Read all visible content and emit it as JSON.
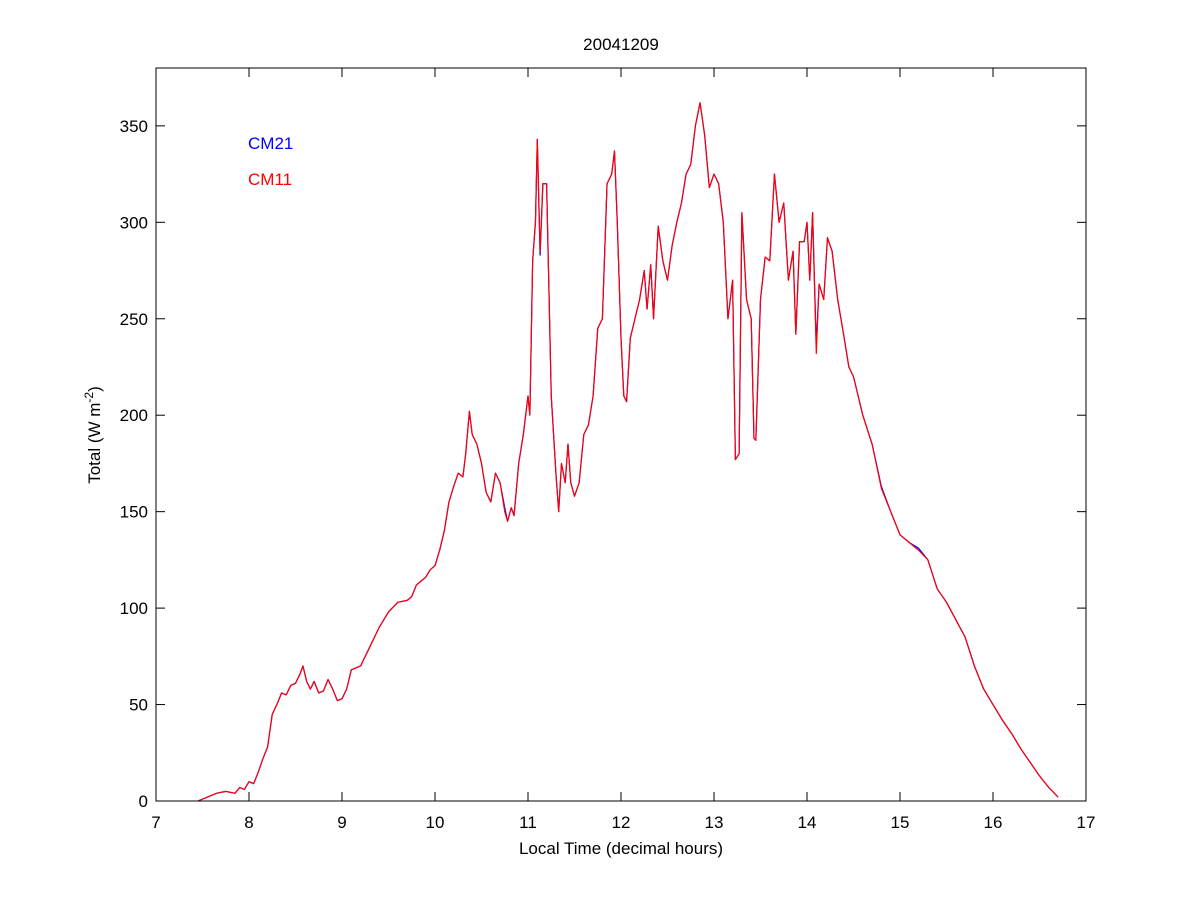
{
  "chart_data": {
    "type": "line",
    "title": "20041209",
    "x_label": "Local Time (decimal hours)",
    "y_label": [
      "Total (W m",
      "-2",
      ")"
    ],
    "xlim": [
      7,
      17
    ],
    "xticks": [
      7,
      8,
      9,
      10,
      11,
      12,
      13,
      14,
      15,
      16,
      17
    ],
    "ylim": [
      0,
      380
    ],
    "yticks": [
      0,
      50,
      100,
      150,
      200,
      250,
      300,
      350
    ],
    "legend": "upper left",
    "x": [
      7.45,
      7.55,
      7.65,
      7.75,
      7.85,
      7.9,
      7.95,
      8.0,
      8.05,
      8.1,
      8.15,
      8.2,
      8.25,
      8.3,
      8.35,
      8.4,
      8.45,
      8.5,
      8.55,
      8.58,
      8.62,
      8.66,
      8.7,
      8.75,
      8.8,
      8.85,
      8.9,
      8.95,
      9.0,
      9.05,
      9.1,
      9.2,
      9.3,
      9.4,
      9.5,
      9.6,
      9.7,
      9.75,
      9.8,
      9.9,
      9.95,
      10.0,
      10.05,
      10.1,
      10.15,
      10.2,
      10.25,
      10.3,
      10.33,
      10.37,
      10.4,
      10.45,
      10.5,
      10.55,
      10.6,
      10.65,
      10.7,
      10.75,
      10.78,
      10.82,
      10.85,
      10.9,
      10.95,
      11.0,
      11.02,
      11.05,
      11.08,
      11.1,
      11.13,
      11.16,
      11.2,
      11.25,
      11.3,
      11.33,
      11.36,
      11.4,
      11.43,
      11.46,
      11.5,
      11.55,
      11.6,
      11.65,
      11.7,
      11.75,
      11.8,
      11.85,
      11.9,
      11.93,
      11.96,
      12.0,
      12.03,
      12.06,
      12.1,
      12.15,
      12.2,
      12.25,
      12.28,
      12.32,
      12.35,
      12.4,
      12.45,
      12.5,
      12.55,
      12.6,
      12.65,
      12.7,
      12.75,
      12.8,
      12.85,
      12.9,
      12.95,
      13.0,
      13.05,
      13.1,
      13.15,
      13.2,
      13.23,
      13.27,
      13.3,
      13.35,
      13.4,
      13.43,
      13.45,
      13.5,
      13.55,
      13.6,
      13.65,
      13.7,
      13.75,
      13.8,
      13.85,
      13.88,
      13.92,
      13.97,
      14.0,
      14.03,
      14.06,
      14.1,
      14.13,
      14.18,
      14.22,
      14.27,
      14.33,
      14.4,
      14.45,
      14.5,
      14.6,
      14.7,
      14.8,
      14.9,
      15.0,
      15.1,
      15.2,
      15.3,
      15.4,
      15.5,
      15.6,
      15.7,
      15.8,
      15.9,
      16.0,
      16.1,
      16.2,
      16.3,
      16.4,
      16.5,
      16.6,
      16.7
    ],
    "series": [
      {
        "name": "CM21",
        "color": "#0000ff",
        "values": [
          0,
          2,
          4,
          5,
          4,
          7,
          6,
          10,
          9,
          15,
          22,
          28,
          45,
          50,
          56,
          55,
          60,
          61,
          66,
          70,
          62,
          58,
          62,
          56,
          57,
          63,
          58,
          52,
          53,
          58,
          68,
          70,
          80,
          90,
          98,
          103,
          104,
          106,
          112,
          116,
          120,
          122,
          130,
          140,
          155,
          163,
          170,
          168,
          180,
          202,
          190,
          185,
          175,
          160,
          155,
          170,
          165,
          152,
          145,
          152,
          148,
          175,
          190,
          210,
          200,
          280,
          300,
          343,
          283,
          320,
          320,
          210,
          170,
          150,
          175,
          165,
          185,
          165,
          158,
          165,
          190,
          195,
          210,
          245,
          250,
          320,
          325,
          337,
          300,
          240,
          210,
          207,
          240,
          250,
          260,
          275,
          255,
          278,
          250,
          298,
          280,
          270,
          288,
          300,
          310,
          325,
          330,
          350,
          362,
          345,
          318,
          325,
          320,
          300,
          250,
          270,
          177,
          180,
          305,
          260,
          250,
          188,
          187,
          260,
          282,
          280,
          325,
          300,
          310,
          270,
          285,
          242,
          290,
          290,
          300,
          270,
          305,
          236,
          268,
          260,
          292,
          285,
          260,
          240,
          225,
          220,
          200,
          185,
          163,
          150,
          138,
          134,
          131,
          125,
          110,
          103,
          94,
          85,
          70,
          58,
          50,
          42,
          35,
          27,
          20,
          13,
          7,
          2
        ]
      },
      {
        "name": "CM11",
        "color": "#ff0000",
        "values": [
          0,
          2,
          4,
          5,
          4,
          7,
          6,
          10,
          9,
          15,
          22,
          28,
          45,
          50,
          56,
          55,
          60,
          61,
          66,
          70,
          62,
          58,
          62,
          56,
          57,
          63,
          58,
          52,
          53,
          58,
          68,
          70,
          80,
          90,
          98,
          103,
          104,
          106,
          112,
          116,
          120,
          122,
          130,
          140,
          155,
          163,
          170,
          168,
          180,
          202,
          190,
          185,
          175,
          160,
          155,
          170,
          165,
          150,
          145,
          152,
          148,
          175,
          190,
          210,
          200,
          280,
          300,
          343,
          285,
          320,
          320,
          210,
          170,
          150,
          175,
          165,
          185,
          165,
          158,
          165,
          190,
          195,
          210,
          245,
          250,
          320,
          325,
          337,
          300,
          240,
          210,
          207,
          240,
          250,
          260,
          275,
          255,
          278,
          250,
          298,
          280,
          270,
          288,
          300,
          310,
          325,
          330,
          350,
          362,
          345,
          318,
          325,
          320,
          300,
          250,
          270,
          177,
          180,
          305,
          260,
          250,
          188,
          187,
          260,
          282,
          280,
          325,
          300,
          310,
          270,
          285,
          242,
          290,
          290,
          300,
          270,
          305,
          232,
          268,
          260,
          292,
          285,
          260,
          240,
          225,
          220,
          200,
          185,
          162,
          150,
          138,
          134,
          130,
          125,
          110,
          103,
          94,
          85,
          70,
          58,
          50,
          42,
          35,
          27,
          20,
          13,
          7,
          2
        ]
      }
    ]
  }
}
